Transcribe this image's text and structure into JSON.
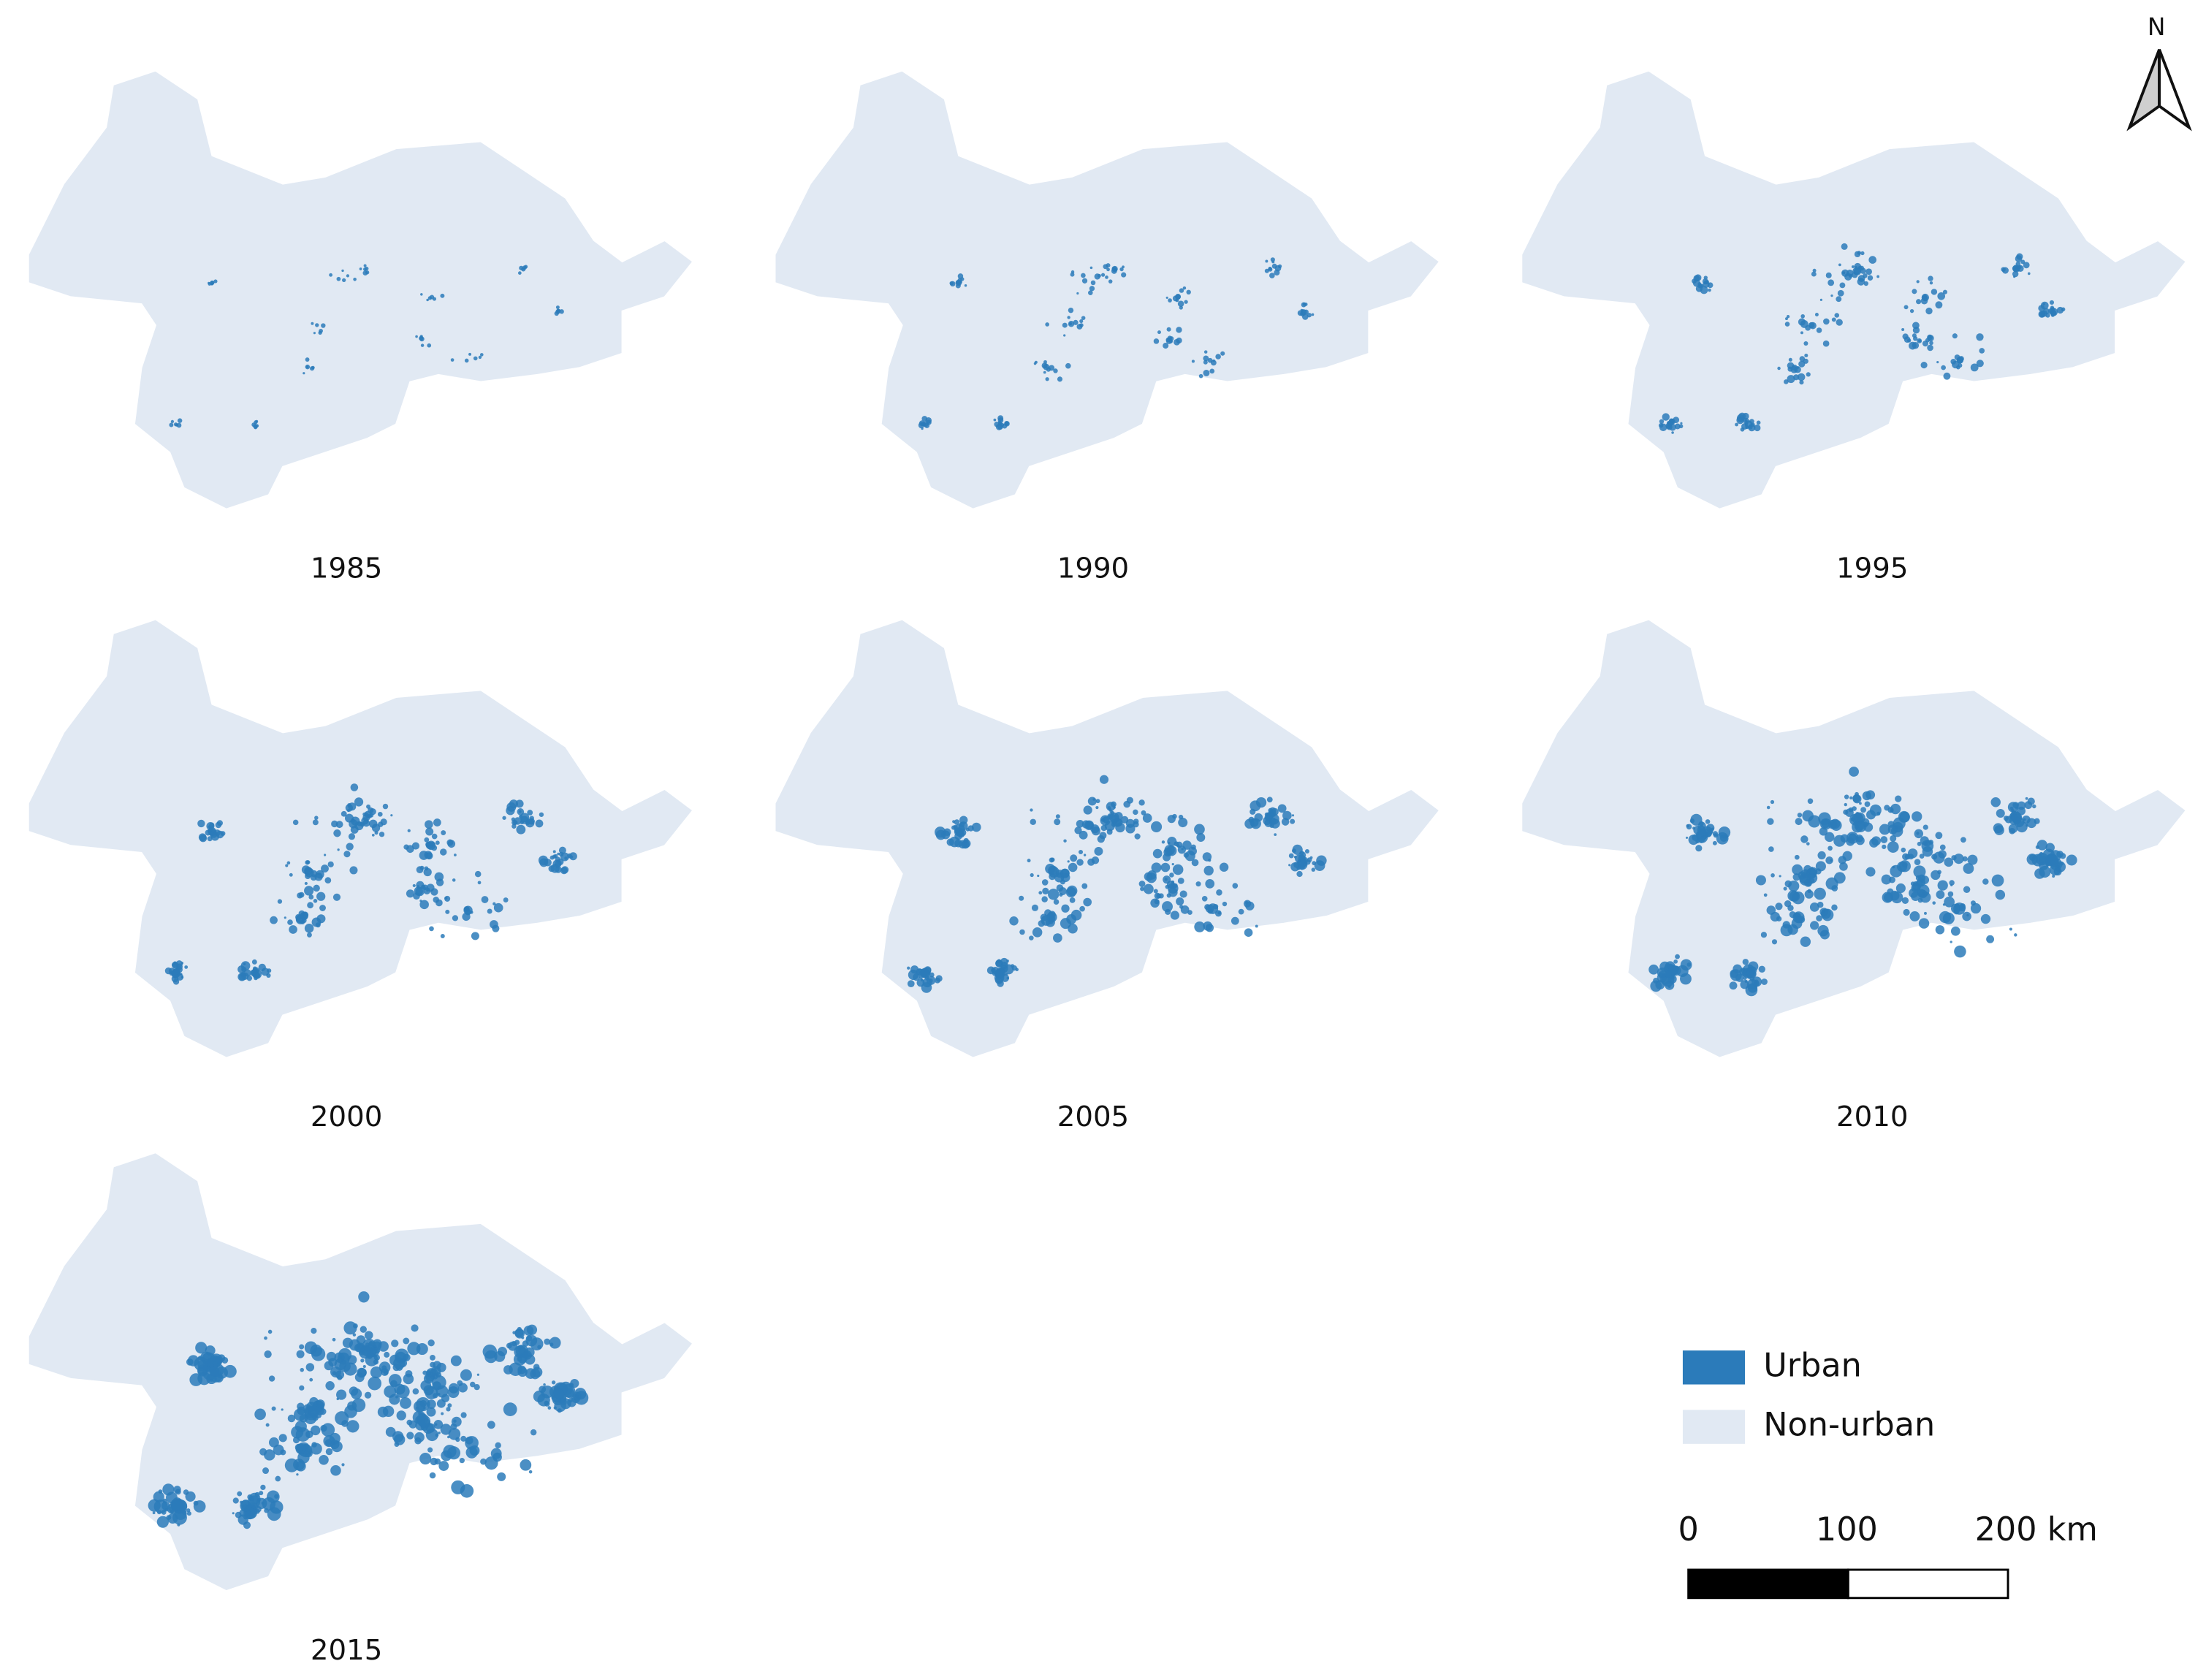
{
  "panels": [
    {
      "year": "1985"
    },
    {
      "year": "1990"
    },
    {
      "year": "1995"
    },
    {
      "year": "2000"
    },
    {
      "year": "2005"
    },
    {
      "year": "2010"
    },
    {
      "year": "2015"
    }
  ],
  "legend": [
    {
      "label": "Urban",
      "color": "#2b7bba"
    },
    {
      "label": "Non-urban",
      "color": "#e1e9f3"
    }
  ],
  "scale_bar": {
    "labels": [
      "0",
      "100",
      "200 km"
    ]
  },
  "north_arrow": {
    "label": "N"
  }
}
